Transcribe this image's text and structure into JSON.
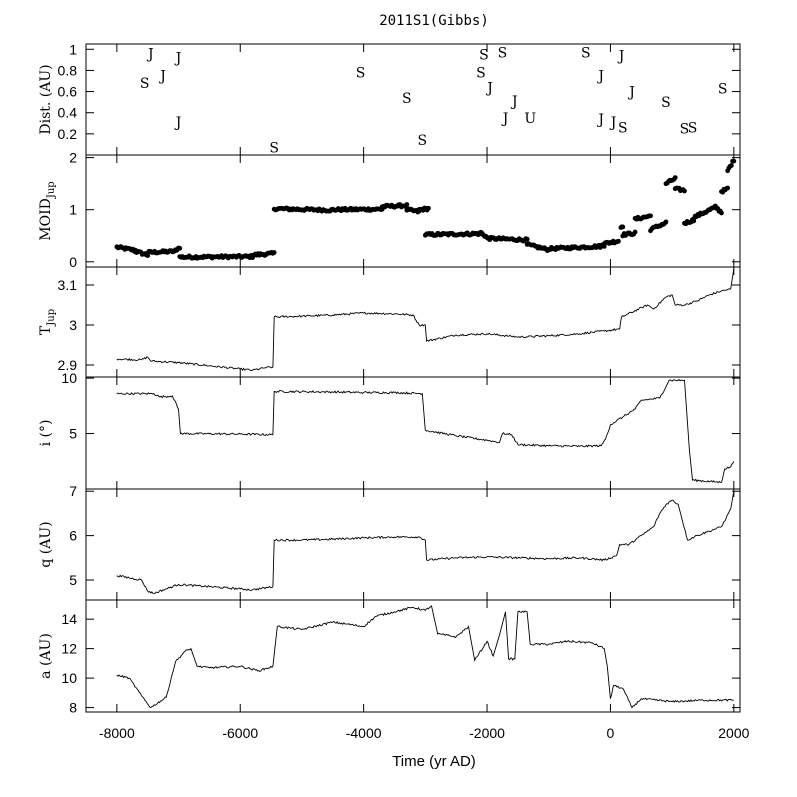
{
  "chart_data": {
    "title": "2011S1(Gibbs)",
    "xlabel": "Time (yr AD)",
    "xlim": [
      -8500,
      2100
    ],
    "xticks": [
      -8000,
      -6000,
      -4000,
      -2000,
      0,
      2000
    ],
    "xtick_labels": [
      "-8000",
      "-6000",
      "-4000",
      "-2000",
      "0",
      "2000"
    ],
    "panels": [
      {
        "id": "dist",
        "type": "scatter",
        "ylabel": "Dist. (AU)",
        "ylim": [
          0,
          1.05
        ],
        "yticks": [
          0.2,
          0.4,
          0.6,
          0.8,
          1
        ],
        "ytick_labels": [
          "0.2",
          "0.4",
          "0.6",
          "0.8",
          "1"
        ],
        "encounters": [
          {
            "x": -7450,
            "y": 0.96,
            "label": "J"
          },
          {
            "x": -7550,
            "y": 0.68,
            "label": "S"
          },
          {
            "x": -7250,
            "y": 0.75,
            "label": "J"
          },
          {
            "x": -7000,
            "y": 0.92,
            "label": "J"
          },
          {
            "x": -7000,
            "y": 0.31,
            "label": "J"
          },
          {
            "x": -5450,
            "y": 0.07,
            "label": "S"
          },
          {
            "x": -4050,
            "y": 0.78,
            "label": "S"
          },
          {
            "x": -3300,
            "y": 0.54,
            "label": "S"
          },
          {
            "x": -3050,
            "y": 0.14,
            "label": "S"
          },
          {
            "x": -2050,
            "y": 0.95,
            "label": "S"
          },
          {
            "x": -2100,
            "y": 0.78,
            "label": "S"
          },
          {
            "x": -1950,
            "y": 0.64,
            "label": "J"
          },
          {
            "x": -1750,
            "y": 0.97,
            "label": "S"
          },
          {
            "x": -1550,
            "y": 0.51,
            "label": "J"
          },
          {
            "x": -1700,
            "y": 0.35,
            "label": "J"
          },
          {
            "x": -1300,
            "y": 0.35,
            "label": "U"
          },
          {
            "x": -400,
            "y": 0.97,
            "label": "S"
          },
          {
            "x": -150,
            "y": 0.75,
            "label": "J"
          },
          {
            "x": 180,
            "y": 0.94,
            "label": "J"
          },
          {
            "x": 350,
            "y": 0.6,
            "label": "J"
          },
          {
            "x": -150,
            "y": 0.34,
            "label": "J"
          },
          {
            "x": 50,
            "y": 0.31,
            "label": "J"
          },
          {
            "x": 200,
            "y": 0.26,
            "label": "S"
          },
          {
            "x": 900,
            "y": 0.5,
            "label": "S"
          },
          {
            "x": 1200,
            "y": 0.25,
            "label": "S"
          },
          {
            "x": 1330,
            "y": 0.26,
            "label": "S"
          },
          {
            "x": 1820,
            "y": 0.63,
            "label": "S"
          }
        ]
      },
      {
        "id": "moid",
        "type": "scatter",
        "ylabel": "MOID",
        "ylabel_sub": "Jup",
        "ylim": [
          -0.1,
          2.05
        ],
        "yticks": [
          0,
          1,
          2
        ],
        "ytick_labels": [
          "0",
          "1",
          "2"
        ],
        "segments": [
          {
            "x0": -8000,
            "x1": -7700,
            "y0": 0.28,
            "y1": 0.22
          },
          {
            "x0": -7700,
            "x1": -7500,
            "y0": 0.2,
            "y1": 0.13
          },
          {
            "x0": -7500,
            "x1": -7050,
            "y0": 0.18,
            "y1": 0.2
          },
          {
            "x0": -7050,
            "x1": -6980,
            "y0": 0.22,
            "y1": 0.28
          },
          {
            "x0": -6980,
            "x1": -5800,
            "y0": 0.09,
            "y1": 0.1
          },
          {
            "x0": -5800,
            "x1": -5450,
            "y0": 0.13,
            "y1": 0.16
          },
          {
            "x0": -5450,
            "x1": -4500,
            "y0": 1.02,
            "y1": 0.99
          },
          {
            "x0": -4500,
            "x1": -3700,
            "y0": 1.0,
            "y1": 1.01
          },
          {
            "x0": -3700,
            "x1": -3300,
            "y0": 1.06,
            "y1": 1.08
          },
          {
            "x0": -3300,
            "x1": -3100,
            "y0": 1.0,
            "y1": 0.96
          },
          {
            "x0": -3100,
            "x1": -2950,
            "y0": 1.0,
            "y1": 1.02
          },
          {
            "x0": -3000,
            "x1": -2100,
            "y0": 0.52,
            "y1": 0.54
          },
          {
            "x0": -2100,
            "x1": -2000,
            "y0": 0.56,
            "y1": 0.47
          },
          {
            "x0": -2000,
            "x1": -1350,
            "y0": 0.45,
            "y1": 0.42
          },
          {
            "x0": -1350,
            "x1": -1000,
            "y0": 0.33,
            "y1": 0.23
          },
          {
            "x0": -1000,
            "x1": -100,
            "y0": 0.25,
            "y1": 0.3
          },
          {
            "x0": -150,
            "x1": 130,
            "y0": 0.34,
            "y1": 0.4
          },
          {
            "x0": 170,
            "x1": 200,
            "y0": 0.66,
            "y1": 0.69
          },
          {
            "x0": 200,
            "x1": 400,
            "y0": 0.52,
            "y1": 0.55
          },
          {
            "x0": 400,
            "x1": 650,
            "y0": 0.82,
            "y1": 0.88
          },
          {
            "x0": 650,
            "x1": 900,
            "y0": 0.62,
            "y1": 0.75
          },
          {
            "x0": 900,
            "x1": 1050,
            "y0": 1.5,
            "y1": 1.6
          },
          {
            "x0": 1050,
            "x1": 1200,
            "y0": 1.4,
            "y1": 1.37
          },
          {
            "x0": 1200,
            "x1": 1350,
            "y0": 0.74,
            "y1": 0.8
          },
          {
            "x0": 1350,
            "x1": 1700,
            "y0": 0.85,
            "y1": 1.05
          },
          {
            "x0": 1700,
            "x1": 1800,
            "y0": 1.05,
            "y1": 0.95
          },
          {
            "x0": 1800,
            "x1": 1900,
            "y0": 1.35,
            "y1": 1.4
          },
          {
            "x0": 1900,
            "x1": 2000,
            "y0": 1.75,
            "y1": 1.95
          }
        ]
      },
      {
        "id": "tjup",
        "type": "line",
        "ylabel": "T",
        "ylabel_sub": "Jup",
        "ylim": [
          2.87,
          3.145
        ],
        "yticks": [
          2.9,
          3,
          3.1
        ],
        "ytick_labels": [
          "2.9",
          "3",
          "3.1"
        ],
        "points": [
          [
            -8000,
            2.915
          ],
          [
            -7600,
            2.913
          ],
          [
            -7500,
            2.92
          ],
          [
            -7450,
            2.91
          ],
          [
            -7000,
            2.906
          ],
          [
            -6500,
            2.898
          ],
          [
            -6000,
            2.89
          ],
          [
            -5800,
            2.887
          ],
          [
            -5600,
            2.893
          ],
          [
            -5470,
            2.895
          ],
          [
            -5450,
            3.02
          ],
          [
            -5000,
            3.022
          ],
          [
            -4500,
            3.025
          ],
          [
            -4000,
            3.03
          ],
          [
            -3500,
            3.028
          ],
          [
            -3200,
            3.025
          ],
          [
            -3100,
            3.0
          ],
          [
            -3000,
            3.0
          ],
          [
            -2980,
            2.96
          ],
          [
            -2500,
            2.975
          ],
          [
            -2000,
            2.978
          ],
          [
            -1500,
            2.97
          ],
          [
            -1000,
            2.973
          ],
          [
            -500,
            2.978
          ],
          [
            -100,
            2.985
          ],
          [
            150,
            2.99
          ],
          [
            180,
            3.02
          ],
          [
            600,
            3.05
          ],
          [
            700,
            3.04
          ],
          [
            900,
            3.07
          ],
          [
            1000,
            3.075
          ],
          [
            1050,
            3.05
          ],
          [
            1200,
            3.05
          ],
          [
            1400,
            3.06
          ],
          [
            1600,
            3.075
          ],
          [
            1800,
            3.085
          ],
          [
            1950,
            3.09
          ],
          [
            2000,
            3.14
          ]
        ]
      },
      {
        "id": "incl",
        "type": "line",
        "ylabel": "i (°)",
        "ylim": [
          0,
          10.1
        ],
        "yticks": [
          5,
          10
        ],
        "ytick_labels": [
          "5",
          "10"
        ],
        "points": [
          [
            -8000,
            8.6
          ],
          [
            -7400,
            8.6
          ],
          [
            -7300,
            8.3
          ],
          [
            -7100,
            8.4
          ],
          [
            -7000,
            7.2
          ],
          [
            -6970,
            5.0
          ],
          [
            -6000,
            4.95
          ],
          [
            -5470,
            4.9
          ],
          [
            -5450,
            8.8
          ],
          [
            -4500,
            8.75
          ],
          [
            -4000,
            8.7
          ],
          [
            -3500,
            8.7
          ],
          [
            -3050,
            8.6
          ],
          [
            -3000,
            5.3
          ],
          [
            -2500,
            4.8
          ],
          [
            -2000,
            4.4
          ],
          [
            -1800,
            4.2
          ],
          [
            -1750,
            5.0
          ],
          [
            -1600,
            4.9
          ],
          [
            -1500,
            4.0
          ],
          [
            -1000,
            3.9
          ],
          [
            -500,
            3.85
          ],
          [
            -150,
            3.9
          ],
          [
            -80,
            4.5
          ],
          [
            0,
            5.8
          ],
          [
            200,
            6.5
          ],
          [
            400,
            7.2
          ],
          [
            500,
            8.0
          ],
          [
            800,
            8.2
          ],
          [
            950,
            9.8
          ],
          [
            1200,
            9.8
          ],
          [
            1280,
            3.5
          ],
          [
            1330,
            0.8
          ],
          [
            1800,
            0.6
          ],
          [
            1850,
            1.8
          ],
          [
            1950,
            2.0
          ],
          [
            2000,
            2.5
          ]
        ]
      },
      {
        "id": "q",
        "type": "line",
        "ylabel": "q (AU)",
        "ylim": [
          4.55,
          7.05
        ],
        "yticks": [
          5,
          6,
          7
        ],
        "ytick_labels": [
          "5",
          "6",
          "7"
        ],
        "points": [
          [
            -8000,
            5.1
          ],
          [
            -7600,
            5.0
          ],
          [
            -7500,
            4.75
          ],
          [
            -7400,
            4.7
          ],
          [
            -7200,
            4.8
          ],
          [
            -7000,
            4.9
          ],
          [
            -6500,
            4.85
          ],
          [
            -6000,
            4.8
          ],
          [
            -5800,
            4.78
          ],
          [
            -5470,
            4.85
          ],
          [
            -5450,
            5.9
          ],
          [
            -5000,
            5.9
          ],
          [
            -4500,
            5.92
          ],
          [
            -4000,
            5.95
          ],
          [
            -3500,
            5.97
          ],
          [
            -3100,
            5.97
          ],
          [
            -3000,
            5.9
          ],
          [
            -2980,
            5.45
          ],
          [
            -2500,
            5.5
          ],
          [
            -2000,
            5.52
          ],
          [
            -1500,
            5.5
          ],
          [
            -1000,
            5.48
          ],
          [
            -500,
            5.5
          ],
          [
            -100,
            5.45
          ],
          [
            100,
            5.55
          ],
          [
            150,
            5.8
          ],
          [
            300,
            5.8
          ],
          [
            500,
            6.0
          ],
          [
            700,
            6.2
          ],
          [
            800,
            6.5
          ],
          [
            900,
            6.7
          ],
          [
            1000,
            6.8
          ],
          [
            1100,
            6.7
          ],
          [
            1250,
            5.9
          ],
          [
            1400,
            6.0
          ],
          [
            1600,
            6.1
          ],
          [
            1800,
            6.2
          ],
          [
            1950,
            6.6
          ],
          [
            2000,
            7.0
          ]
        ]
      },
      {
        "id": "a",
        "type": "line",
        "ylabel": "a (AU)",
        "ylim": [
          7.7,
          15.3
        ],
        "yticks": [
          8,
          10,
          12,
          14
        ],
        "ytick_labels": [
          "8",
          "10",
          "12",
          "14"
        ],
        "points": [
          [
            -8000,
            10.2
          ],
          [
            -7800,
            10.0
          ],
          [
            -7600,
            8.8
          ],
          [
            -7450,
            8.0
          ],
          [
            -7200,
            8.7
          ],
          [
            -7050,
            11.1
          ],
          [
            -6900,
            11.8
          ],
          [
            -6800,
            12.0
          ],
          [
            -6700,
            10.8
          ],
          [
            -6500,
            10.7
          ],
          [
            -6000,
            10.8
          ],
          [
            -5700,
            10.5
          ],
          [
            -5470,
            10.8
          ],
          [
            -5400,
            13.5
          ],
          [
            -5000,
            13.3
          ],
          [
            -4500,
            13.8
          ],
          [
            -4000,
            13.5
          ],
          [
            -3800,
            14.2
          ],
          [
            -3500,
            14.5
          ],
          [
            -3200,
            14.8
          ],
          [
            -3000,
            14.6
          ],
          [
            -2900,
            14.9
          ],
          [
            -2800,
            13.0
          ],
          [
            -2500,
            12.8
          ],
          [
            -2300,
            13.5
          ],
          [
            -2200,
            11.2
          ],
          [
            -2000,
            12.5
          ],
          [
            -1900,
            11.5
          ],
          [
            -1800,
            12.9
          ],
          [
            -1700,
            14.5
          ],
          [
            -1650,
            11.3
          ],
          [
            -1550,
            11.3
          ],
          [
            -1500,
            14.5
          ],
          [
            -1350,
            14.5
          ],
          [
            -1300,
            12.3
          ],
          [
            -1000,
            12.3
          ],
          [
            -700,
            12.5
          ],
          [
            -300,
            12.4
          ],
          [
            -100,
            12.0
          ],
          [
            -50,
            10.8
          ],
          [
            0,
            8.6
          ],
          [
            50,
            9.5
          ],
          [
            200,
            9.3
          ],
          [
            350,
            8.0
          ],
          [
            500,
            8.6
          ],
          [
            1000,
            8.4
          ],
          [
            1500,
            8.5
          ],
          [
            2000,
            8.5
          ]
        ]
      }
    ]
  }
}
